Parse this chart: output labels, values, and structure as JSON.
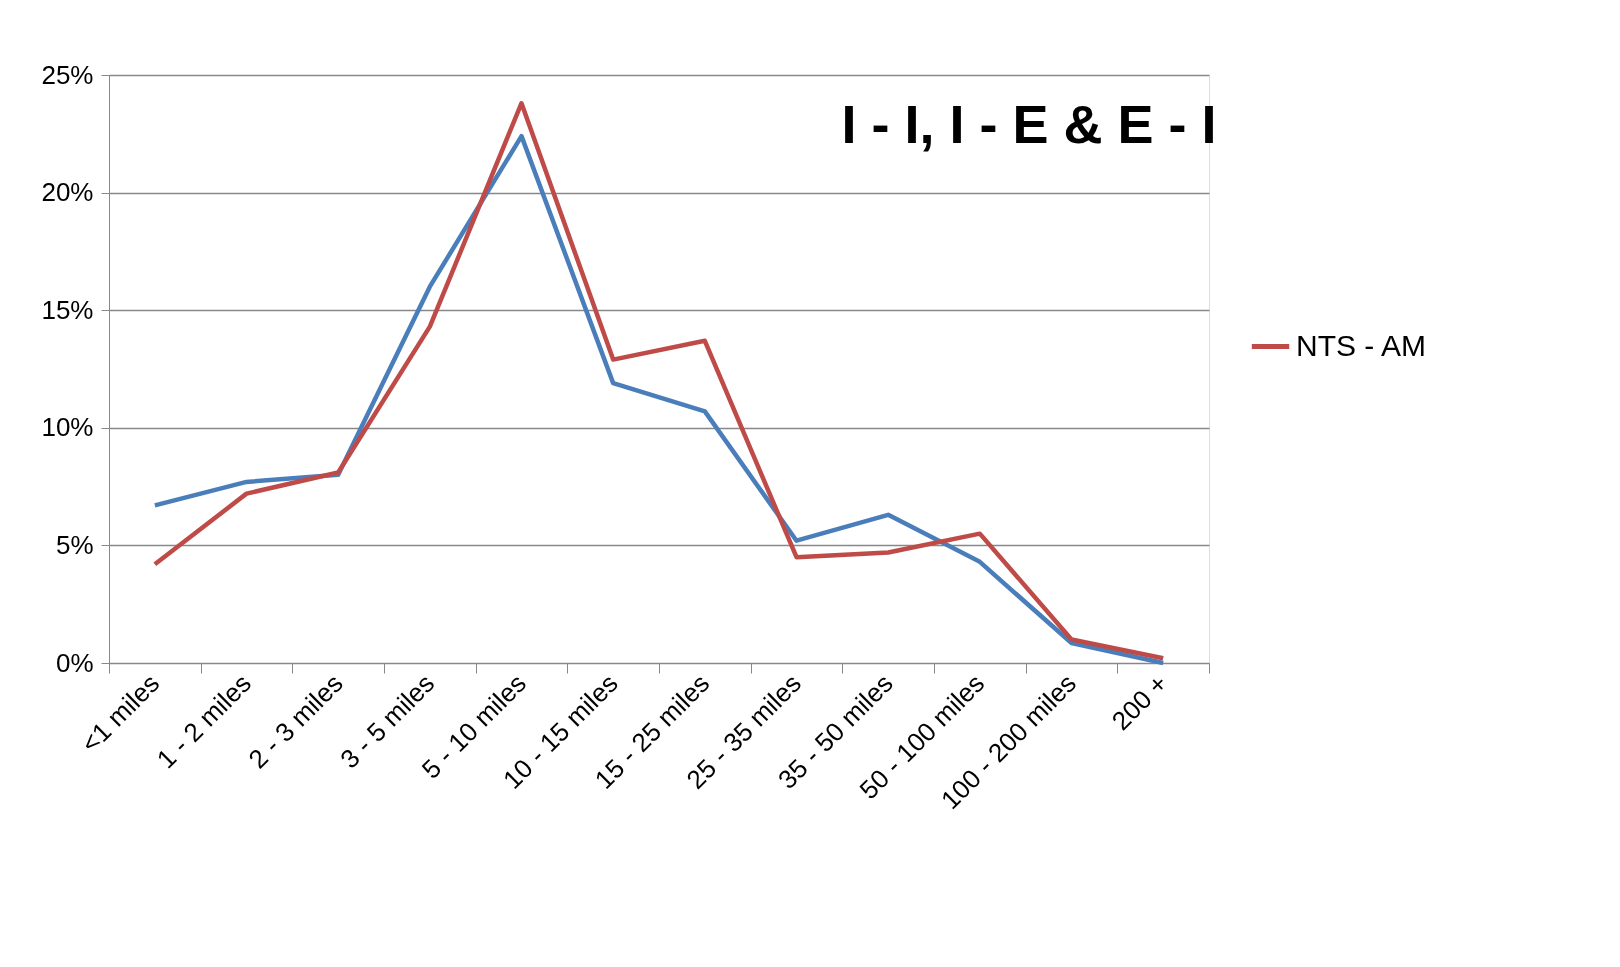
{
  "chart_data": {
    "type": "line",
    "title": "I - I, I  - E & E - I",
    "categories": [
      "<1 miles",
      "1 - 2 miles",
      "2 - 3 miles",
      "3 - 5 miles",
      "5 - 10 miles",
      "10 - 15 miles",
      "15 - 25 miles",
      "25 - 35 miles",
      "35 - 50 miles",
      "50 - 100 miles",
      "100 - 200 miles",
      "200 +"
    ],
    "series": [
      {
        "color": "#4a7ebb",
        "values": [
          6.7,
          7.7,
          8.0,
          16.0,
          22.4,
          11.9,
          10.7,
          5.2,
          6.3,
          4.3,
          0.85,
          0.0
        ]
      },
      {
        "name": "NTS - AM",
        "color": "#be4b48",
        "values": [
          4.2,
          7.2,
          8.1,
          14.3,
          23.8,
          12.9,
          13.7,
          4.5,
          4.7,
          5.5,
          1.0,
          0.2
        ]
      }
    ],
    "ylim": [
      0,
      25
    ],
    "yticks": [
      {
        "value": 0,
        "label": "0%"
      },
      {
        "value": 5,
        "label": "5%"
      },
      {
        "value": 10,
        "label": "10%"
      },
      {
        "value": 15,
        "label": "15%"
      },
      {
        "value": 20,
        "label": "20%"
      },
      {
        "value": 25,
        "label": "25%"
      }
    ],
    "grid": "y",
    "legend": "right",
    "marker": "none",
    "line_style": "solid"
  }
}
